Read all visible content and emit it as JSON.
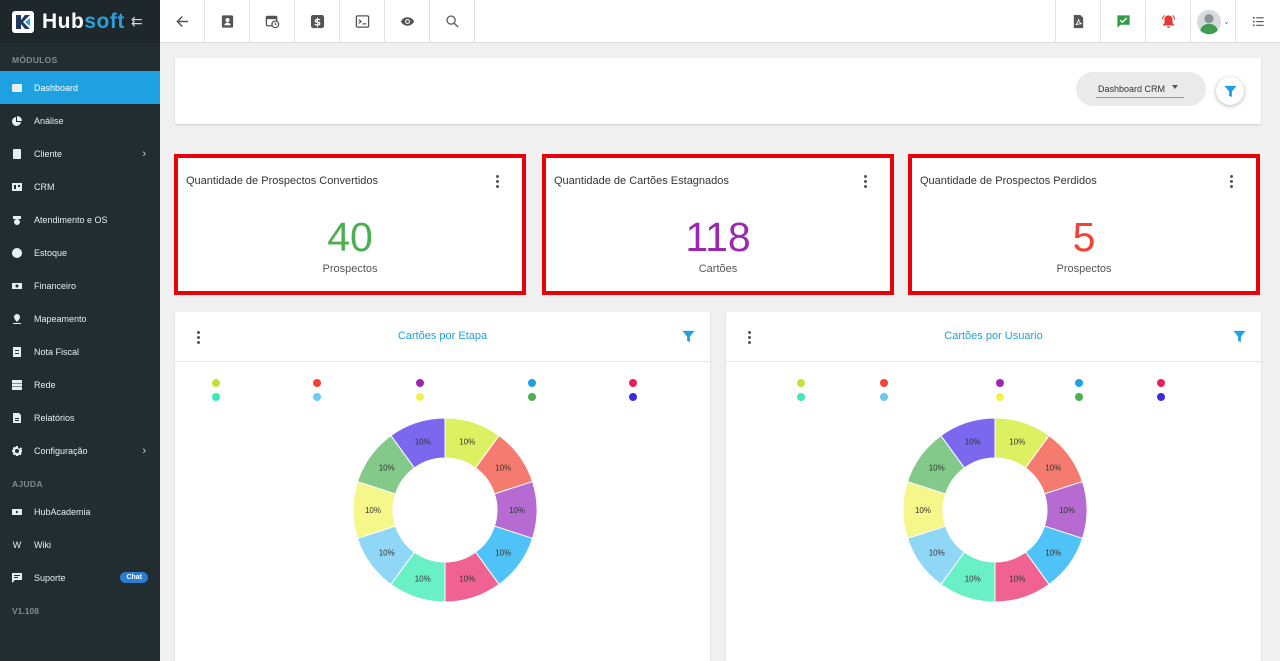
{
  "brand": {
    "hub": "Hub",
    "soft": "soft"
  },
  "sidebar": {
    "section_modules": "MÓDULOS",
    "section_help": "AJUDA",
    "version": "V1.108",
    "items": [
      {
        "label": "Dashboard",
        "icon": "dashboard-icon"
      },
      {
        "label": "Análise",
        "icon": "pie-chart-icon"
      },
      {
        "label": "Cliente",
        "icon": "contact-card-icon"
      },
      {
        "label": "CRM",
        "icon": "board-icon"
      },
      {
        "label": "Atendimento e OS",
        "icon": "calendar-clock-icon"
      },
      {
        "label": "Estoque",
        "icon": "box-icon"
      },
      {
        "label": "Financeiro",
        "icon": "money-icon"
      },
      {
        "label": "Mapeamento",
        "icon": "map-pin-icon"
      },
      {
        "label": "Nota Fiscal",
        "icon": "receipt-icon"
      },
      {
        "label": "Rede",
        "icon": "server-icon"
      },
      {
        "label": "Relatórios",
        "icon": "document-icon"
      },
      {
        "label": "Configuração",
        "icon": "gear-icon"
      }
    ],
    "help_items": [
      {
        "label": "HubAcademia",
        "icon": "play-icon"
      },
      {
        "label": "Wiki",
        "icon": "wiki-icon"
      },
      {
        "label": "Suporte",
        "icon": "chat-icon",
        "badge": "Chat"
      }
    ]
  },
  "filter": {
    "selected_dashboard": "Dashboard CRM"
  },
  "stats": [
    {
      "title": "Quantidade de Prospectos Convertidos",
      "value": "40",
      "unit": "Prospectos",
      "color": "#4caf50"
    },
    {
      "title": "Quantidade de Cartões Estagnados",
      "value": "118",
      "unit": "Cartões",
      "color": "#9c27b0"
    },
    {
      "title": "Quantidade de Prospectos Perdidos",
      "value": "5",
      "unit": "Prospectos",
      "color": "#f44336"
    }
  ],
  "charts": [
    {
      "title": "Cartões por Etapa"
    },
    {
      "title": "Cartões por Usuario"
    }
  ],
  "chart_data": [
    {
      "type": "pie",
      "title": "Cartões por Etapa",
      "labels": [
        "10%",
        "10%",
        "10%",
        "10%",
        "10%",
        "10%",
        "10%",
        "10%",
        "10%",
        "10%"
      ],
      "values": [
        10,
        10,
        10,
        10,
        10,
        10,
        10,
        10,
        10,
        10
      ],
      "colors": [
        "#dcf062",
        "#f47b6e",
        "#b56bd1",
        "#4fc3f7",
        "#f06292",
        "#69f0c4",
        "#8fd6f7",
        "#f6f78a",
        "#83c98a",
        "#7b68ee"
      ],
      "legend_colors": [
        "#c6e03a",
        "#f44336",
        "#9c27b0",
        "#1ea1e0",
        "#e91e63",
        "#3ce8b5",
        "#6cc9f0",
        "#f2f04a",
        "#4caf50",
        "#3d2bd9"
      ]
    },
    {
      "type": "pie",
      "title": "Cartões por Usuario",
      "labels": [
        "10%",
        "10%",
        "10%",
        "10%",
        "10%",
        "10%",
        "10%",
        "10%",
        "10%",
        "10%"
      ],
      "values": [
        10,
        10,
        10,
        10,
        10,
        10,
        10,
        10,
        10,
        10
      ],
      "colors": [
        "#dcf062",
        "#f47b6e",
        "#b56bd1",
        "#4fc3f7",
        "#f06292",
        "#69f0c4",
        "#8fd6f7",
        "#f6f78a",
        "#83c98a",
        "#7b68ee"
      ],
      "legend_colors": [
        "#c6e03a",
        "#f44336",
        "#9c27b0",
        "#1ea1e0",
        "#e91e63",
        "#3ce8b5",
        "#6cc9f0",
        "#f2f04a",
        "#4caf50",
        "#3d2bd9"
      ]
    }
  ]
}
